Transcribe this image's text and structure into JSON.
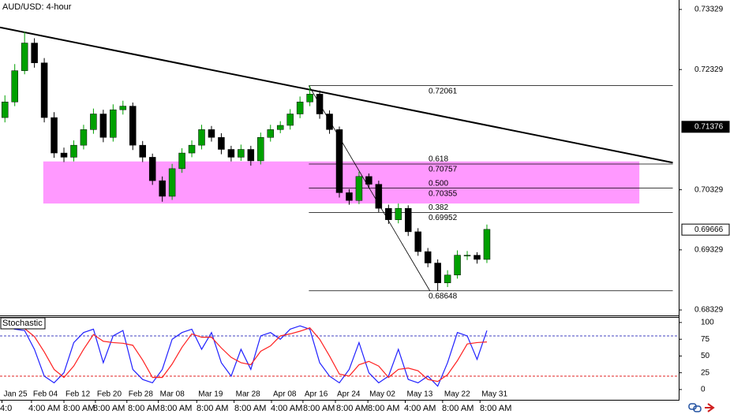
{
  "chart_data": [
    {
      "type": "candlestick",
      "title": "AUD/USD: 4-hour",
      "open": [
        0.7153,
        0.7179,
        0.7231,
        0.7277,
        0.7244,
        0.7153,
        0.7094,
        0.7087,
        0.7107,
        0.7133,
        0.7159,
        0.712,
        0.7166,
        0.7172,
        0.7107,
        0.7087,
        0.7048,
        0.7022,
        0.7068,
        0.7094,
        0.7107,
        0.7133,
        0.712,
        0.71,
        0.7087,
        0.71,
        0.7081,
        0.712,
        0.7133,
        0.714,
        0.7159,
        0.7179,
        0.7192,
        0.7159,
        0.7133,
        0.7028,
        0.7015,
        0.7055,
        0.7042,
        0.7002,
        0.6983,
        0.7002,
        0.6963,
        0.693,
        0.6911,
        0.6878,
        0.6891,
        0.6924,
        0.6924,
        0.6917
      ],
      "high": [
        0.719,
        0.7242,
        0.7296,
        0.7285,
        0.7252,
        0.7162,
        0.7103,
        0.7115,
        0.7141,
        0.7168,
        0.7166,
        0.7175,
        0.7181,
        0.7178,
        0.7114,
        0.7093,
        0.7055,
        0.7076,
        0.7102,
        0.7115,
        0.7141,
        0.7139,
        0.7127,
        0.7106,
        0.7108,
        0.7106,
        0.7128,
        0.7141,
        0.7147,
        0.7167,
        0.7188,
        0.7206,
        0.7198,
        0.7165,
        0.7138,
        0.7034,
        0.7063,
        0.706,
        0.7048,
        0.7008,
        0.701,
        0.7007,
        0.6969,
        0.6936,
        0.6917,
        0.6899,
        0.6932,
        0.6931,
        0.6929,
        0.6975
      ],
      "low": [
        0.7145,
        0.7172,
        0.7225,
        0.7236,
        0.7145,
        0.7086,
        0.7079,
        0.708,
        0.71,
        0.7126,
        0.7112,
        0.7113,
        0.7158,
        0.7099,
        0.7079,
        0.7041,
        0.7013,
        0.7016,
        0.7061,
        0.7087,
        0.71,
        0.7113,
        0.7092,
        0.708,
        0.7081,
        0.7073,
        0.7075,
        0.7113,
        0.7127,
        0.7133,
        0.7152,
        0.7172,
        0.7151,
        0.7126,
        0.702,
        0.7008,
        0.7009,
        0.7035,
        0.6995,
        0.6976,
        0.6977,
        0.6956,
        0.6923,
        0.6904,
        0.6865,
        0.6871,
        0.6885,
        0.6916,
        0.691,
        0.6911
      ],
      "close": [
        0.7179,
        0.7231,
        0.7277,
        0.7244,
        0.7153,
        0.7094,
        0.7087,
        0.7107,
        0.7133,
        0.7159,
        0.712,
        0.7166,
        0.7172,
        0.7107,
        0.7087,
        0.7048,
        0.7022,
        0.7068,
        0.7094,
        0.7107,
        0.7133,
        0.712,
        0.71,
        0.7087,
        0.71,
        0.7081,
        0.712,
        0.7133,
        0.714,
        0.7159,
        0.7179,
        0.7192,
        0.7159,
        0.7133,
        0.7028,
        0.7015,
        0.7055,
        0.7042,
        0.7002,
        0.6983,
        0.7002,
        0.6963,
        0.693,
        0.6911,
        0.6878,
        0.6891,
        0.6924,
        0.6924,
        0.6917,
        0.6967
      ],
      "up_color": "#00a000",
      "down_color": "#000000",
      "xlim": [
        0,
        69
      ],
      "xticks": [
        {
          "value": 0.2,
          "label": "Jan 25"
        },
        {
          "value": 3.2,
          "label": "Feb 04"
        },
        {
          "value": 6.5,
          "label": "Feb 12"
        },
        {
          "value": 9.7,
          "label": "Feb 20"
        },
        {
          "value": 12.9,
          "label": "Feb 28"
        },
        {
          "value": 16.1,
          "label": "Mar 08"
        },
        {
          "value": 20,
          "label": "Mar 19"
        },
        {
          "value": 23.8,
          "label": "Mar 28"
        },
        {
          "value": 27.6,
          "label": "Apr 08"
        },
        {
          "value": 30.8,
          "label": "Apr 16"
        },
        {
          "value": 34.1,
          "label": "Apr 24"
        },
        {
          "value": 37.4,
          "label": "May 02"
        },
        {
          "value": 41.2,
          "label": "May 13"
        },
        {
          "value": 45,
          "label": "May 22"
        },
        {
          "value": 48.8,
          "label": "May 31"
        }
      ],
      "time_labels": [
        "4:0",
        "4:00 AM",
        "8:00 AM",
        "8:00 AM",
        "8:00 AM",
        "8:00 AM",
        "8:00 AM",
        "8:00 AM",
        "4:00 AM",
        "8:00 AM",
        "8:00 AM",
        "8:00 AM",
        "4:00 AM",
        "8:00 AM",
        "8:00 AM"
      ],
      "ylim": [
        0.68238,
        0.73486
      ],
      "yticks": [
        0.73329,
        0.72329,
        0.70329,
        0.69329,
        0.68329
      ],
      "price_markers": [
        {
          "value": 0.71376,
          "fill": "#000000",
          "text_color": "#ffffff"
        },
        {
          "value": 0.69666,
          "fill": "#ffffff",
          "text_color": "#000000"
        }
      ],
      "trendline": {
        "x": [
          0,
          68.4
        ],
        "y": [
          0.7303,
          0.7078
        ],
        "color": "#000000"
      },
      "fib": {
        "x": [
          31.4,
          68.4
        ],
        "from": 0.72061,
        "to": 0.68648,
        "diagonal_x": [
          31.4,
          43.7
        ],
        "levels": [
          {
            "value": 0.72061
          },
          {
            "ratio": "0.618",
            "value": 0.70757
          },
          {
            "ratio": "0.500",
            "value": 0.70355
          },
          {
            "ratio": "0.382",
            "value": 0.69952
          },
          {
            "value": 0.68648
          }
        ]
      },
      "zone": {
        "x": [
          4.4,
          65
        ],
        "y": [
          0.701,
          0.708
        ],
        "color": "#ff99ff"
      }
    },
    {
      "type": "line",
      "title": "Stochastic",
      "series": [
        {
          "color": "#2020ff",
          "values": [
            95,
            90,
            88,
            60,
            20,
            10,
            25,
            70,
            85,
            90,
            40,
            80,
            88,
            30,
            15,
            10,
            30,
            75,
            85,
            90,
            60,
            85,
            40,
            20,
            60,
            30,
            80,
            85,
            75,
            90,
            95,
            90,
            40,
            20,
            10,
            30,
            70,
            25,
            10,
            20,
            60,
            15,
            10,
            20,
            5,
            40,
            85,
            80,
            45,
            88
          ]
        },
        {
          "color": "#ff2020",
          "values": [
            92,
            91,
            91,
            79,
            56,
            30,
            18,
            35,
            60,
            82,
            72,
            70,
            69,
            66,
            44,
            18,
            18,
            38,
            63,
            83,
            78,
            78,
            62,
            48,
            40,
            37,
            57,
            65,
            80,
            83,
            87,
            92,
            75,
            50,
            23,
            20,
            37,
            42,
            35,
            18,
            30,
            32,
            28,
            15,
            12,
            22,
            43,
            68,
            70,
            71
          ]
        }
      ],
      "xlim": [
        0,
        69
      ],
      "ylim": [
        -13,
        107
      ],
      "yticks": [
        100,
        75,
        50,
        25,
        0
      ],
      "levels": [
        {
          "value": 80,
          "color": "#4040c0"
        },
        {
          "value": 20,
          "color": "#e02020"
        }
      ]
    }
  ]
}
